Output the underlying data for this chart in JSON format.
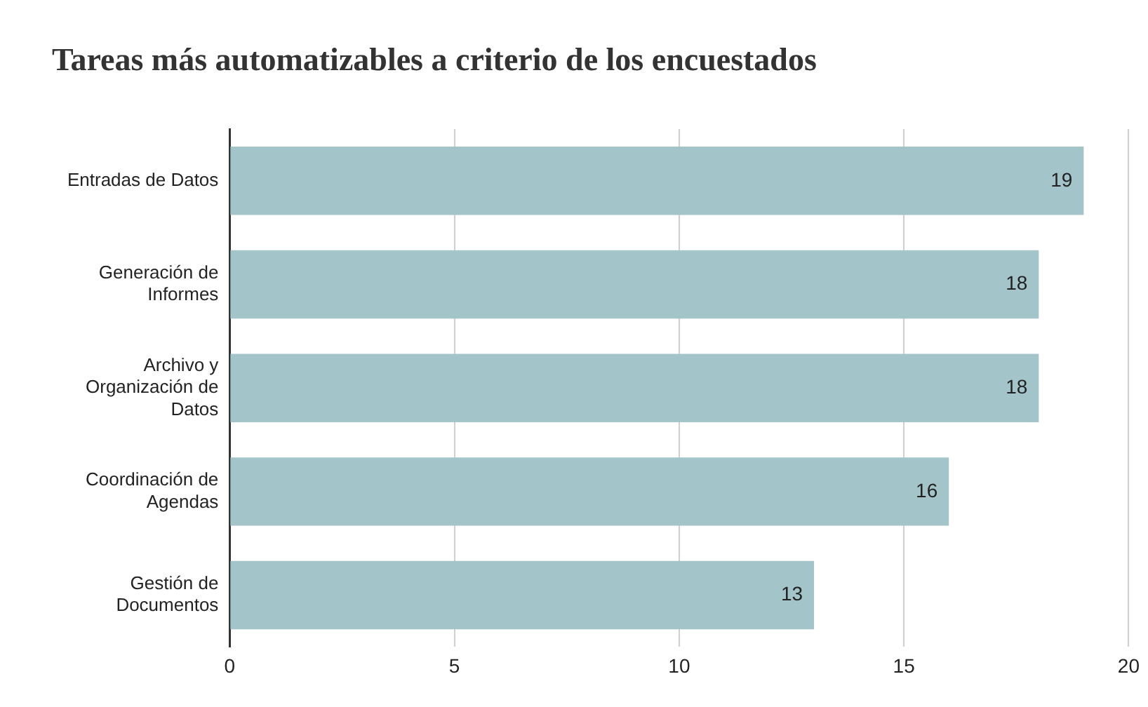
{
  "chart_data": {
    "type": "bar",
    "orientation": "horizontal",
    "title": "Tareas más automatizables a criterio de los encuestados",
    "categories": [
      "Entradas de Datos",
      "Generación de Informes",
      "Archivo y Organización de Datos",
      "Coordinación de Agendas",
      "Gestión de Documentos"
    ],
    "values": [
      19,
      18,
      18,
      16,
      13
    ],
    "color": "#a3c4c9",
    "xlim": [
      0,
      20
    ],
    "xticks": [
      0,
      5,
      10,
      15,
      20
    ],
    "grid": "x",
    "data_labels": true,
    "legend": false
  }
}
